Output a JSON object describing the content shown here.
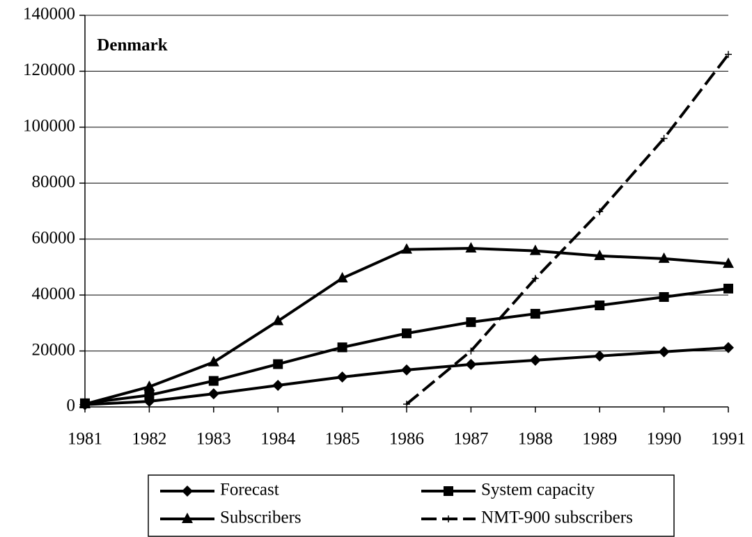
{
  "chart_data": {
    "type": "line",
    "title": "Denmark",
    "categories": [
      "1981",
      "1982",
      "1983",
      "1984",
      "1985",
      "1986",
      "1987",
      "1988",
      "1989",
      "1990",
      "1991"
    ],
    "series": [
      {
        "name": "Forecast",
        "color": "#000000",
        "marker": "diamond",
        "dashed": false,
        "values": [
          800,
          2000,
          4700,
          7700,
          10700,
          13200,
          15200,
          16700,
          18200,
          19700,
          21200
        ]
      },
      {
        "name": "System capacity",
        "color": "#000000",
        "marker": "square",
        "dashed": false,
        "values": [
          1300,
          4200,
          9300,
          15300,
          21300,
          26300,
          30300,
          33300,
          36300,
          39300,
          42300
        ]
      },
      {
        "name": "Subscribers",
        "color": "#000000",
        "marker": "triangle",
        "dashed": false,
        "values": [
          1000,
          7200,
          16000,
          30700,
          46000,
          56300,
          56700,
          55800,
          54000,
          53000,
          51200
        ]
      },
      {
        "name": "NMT-900 subscribers",
        "color": "#000000",
        "marker": "plus",
        "dashed": true,
        "values": [
          null,
          null,
          null,
          null,
          null,
          1000,
          20000,
          45900,
          69800,
          96000,
          126000
        ]
      }
    ],
    "ylim": [
      0,
      140000
    ],
    "yticks": [
      0,
      20000,
      40000,
      60000,
      80000,
      100000,
      120000,
      140000
    ],
    "grid": true,
    "legend": "bottom"
  }
}
